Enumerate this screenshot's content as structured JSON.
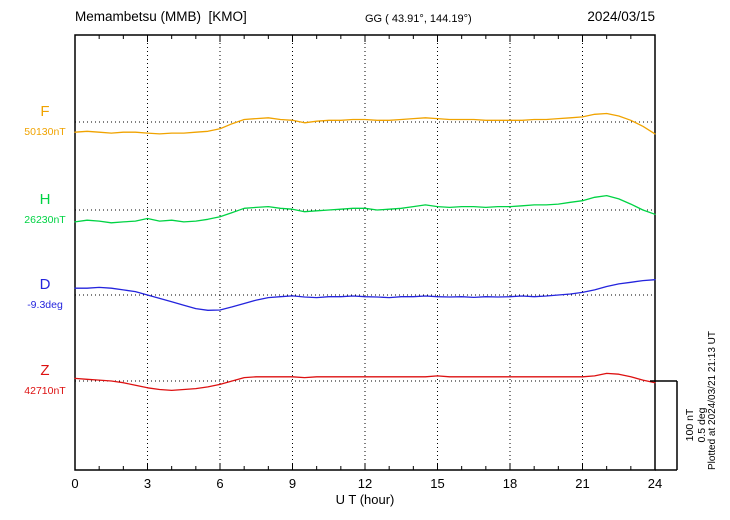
{
  "header": {
    "title": "Memambetsu (MMB)  [KMO]",
    "coords": "GG ( 43.91°, 144.19°)",
    "date": "2024/03/15"
  },
  "axis": {
    "xlabel": "U T (hour)",
    "tick_labels": [
      "0",
      "3",
      "6",
      "9",
      "12",
      "15",
      "18",
      "21",
      "24"
    ],
    "tick_hours": [
      0,
      3,
      6,
      9,
      12,
      15,
      18,
      21,
      24
    ]
  },
  "scale_bar": {
    "nt_label": "100 nT",
    "deg_label": "0.5 deg"
  },
  "footer_note": "Plotted at 2024/03/21 21:13 UT",
  "chart_data": {
    "type": "line",
    "title": "Memambetsu (MMB) [KMO] magnetogram 2024/03/15",
    "xlabel": "U T (hour)",
    "x_range_hours": [
      0,
      24
    ],
    "x_step_hours": 0.5,
    "grid": "dotted vertical every 3 h, dotted horizontal baseline per component",
    "scale_per_division": {
      "nT": 100,
      "deg": 0.5
    },
    "series": [
      {
        "name": "F",
        "color": "#f0a300",
        "unit": "nT",
        "baseline_label": "50130nT",
        "baseline_value": 50130,
        "values": [
          -12,
          -11,
          -12,
          -13,
          -12,
          -12,
          -13,
          -14,
          -13,
          -13,
          -12,
          -11,
          -8,
          -2,
          3,
          4,
          5,
          3,
          2,
          -1,
          1,
          2,
          2,
          3,
          3,
          2,
          2,
          3,
          4,
          5,
          4,
          3,
          3,
          3,
          2,
          2,
          2,
          2,
          3,
          3,
          4,
          5,
          6,
          9,
          10,
          7,
          2,
          -5,
          -14
        ]
      },
      {
        "name": "H",
        "color": "#00d344",
        "unit": "nT",
        "baseline_label": "26230nT",
        "baseline_value": 26230,
        "values": [
          -14,
          -12,
          -13,
          -15,
          -14,
          -13,
          -10,
          -13,
          -12,
          -14,
          -13,
          -11,
          -8,
          -3,
          2,
          3,
          4,
          2,
          1,
          -2,
          -1,
          0,
          1,
          2,
          2,
          0,
          1,
          2,
          4,
          6,
          4,
          3,
          4,
          4,
          3,
          4,
          4,
          5,
          6,
          6,
          7,
          9,
          11,
          15,
          17,
          13,
          7,
          0,
          -5
        ]
      },
      {
        "name": "D",
        "color": "#2424dd",
        "unit": "deg",
        "baseline_label": "-9.3deg",
        "baseline_value": -9.3,
        "values": [
          0.04,
          0.04,
          0.045,
          0.04,
          0.03,
          0.02,
          0.0,
          -0.02,
          -0.04,
          -0.06,
          -0.08,
          -0.09,
          -0.088,
          -0.07,
          -0.05,
          -0.03,
          -0.015,
          -0.01,
          -0.005,
          -0.012,
          -0.015,
          -0.01,
          -0.01,
          -0.006,
          -0.01,
          -0.012,
          -0.015,
          -0.01,
          -0.01,
          -0.006,
          -0.01,
          -0.012,
          -0.01,
          -0.014,
          -0.01,
          -0.012,
          -0.01,
          -0.006,
          -0.01,
          -0.006,
          0.0,
          0.006,
          0.015,
          0.03,
          0.05,
          0.065,
          0.075,
          0.085,
          0.09
        ]
      },
      {
        "name": "Z",
        "color": "#dd1111",
        "unit": "nT",
        "baseline_label": "42710nT",
        "baseline_value": 42710,
        "values": [
          3,
          2,
          1,
          0,
          -2,
          -5,
          -8,
          -10,
          -11,
          -10,
          -9,
          -7,
          -4,
          0,
          4,
          5,
          5,
          5,
          5,
          4,
          5,
          5,
          5,
          5,
          5,
          5,
          5,
          5,
          5,
          5,
          6,
          5,
          5,
          5,
          5,
          5,
          5,
          5,
          5,
          5,
          5,
          5,
          5,
          6,
          9,
          8,
          5,
          1,
          -2
        ]
      }
    ]
  }
}
